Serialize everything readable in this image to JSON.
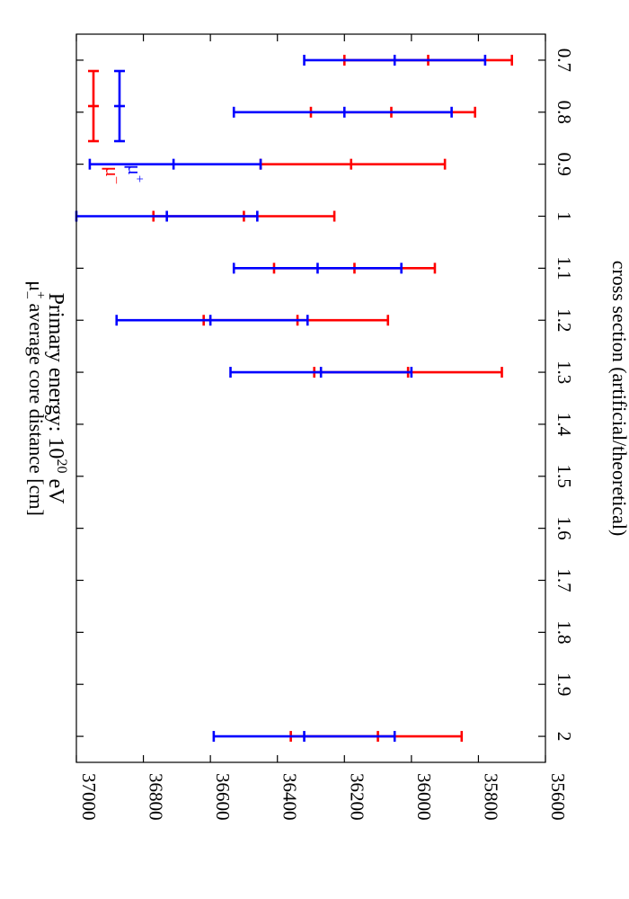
{
  "chart_data": {
    "type": "error-bar",
    "title": "Primary energy: 10^20 eV",
    "title_parts": {
      "prefix": "Primary energy: 10",
      "sup": "20",
      "suffix": " eV"
    },
    "xlabel": "cross section (artificial/theoretical)",
    "ylabel": "μ± average core distance [cm]",
    "ylabel_parts": {
      "base": "μ",
      "sup": "+",
      "sub": "–",
      "rest": " average core distance [cm]"
    },
    "xlim": [
      0.65,
      2.05
    ],
    "ylim": [
      35600,
      37000
    ],
    "x_ticks": [
      0.7,
      0.8,
      0.9,
      1,
      1.1,
      1.2,
      1.3,
      1.4,
      1.5,
      1.6,
      1.7,
      1.8,
      1.9,
      2
    ],
    "x_tick_labels": [
      "0.7",
      "0.8",
      "0.9",
      "1",
      "1.1",
      "1.2",
      "1.3",
      "1.4",
      "1.5",
      "1.6",
      "1.7",
      "1.8",
      "1.9",
      "2"
    ],
    "y_ticks": [
      35600,
      35800,
      36000,
      36200,
      36400,
      36600,
      36800,
      37000
    ],
    "y_tick_labels": [
      "35600",
      "35800",
      "36000",
      "36200",
      "36400",
      "36600",
      "36800",
      "37000"
    ],
    "orientation": "rotated-90-clockwise",
    "legend_position": "top-right",
    "series": [
      {
        "name": "μ–",
        "legend_parts": {
          "base": "μ",
          "sup": "–"
        },
        "color": "#ff0000",
        "points": [
          {
            "x": 0.7,
            "low": 35700,
            "mid": 35950,
            "high": 36200
          },
          {
            "x": 0.8,
            "low": 35810,
            "mid": 36060,
            "high": 36300
          },
          {
            "x": 0.9,
            "low": 35900,
            "mid": 36180,
            "high": 36450
          },
          {
            "x": 1.0,
            "low": 36230,
            "mid": 36500,
            "high": 36770
          },
          {
            "x": 1.1,
            "low": 35930,
            "mid": 36170,
            "high": 36410
          },
          {
            "x": 1.2,
            "low": 36070,
            "mid": 36340,
            "high": 36620
          },
          {
            "x": 1.3,
            "low": 35730,
            "mid": 36010,
            "high": 36290
          },
          {
            "x": 2.0,
            "low": 35850,
            "mid": 36100,
            "high": 36360
          }
        ]
      },
      {
        "name": "μ+",
        "legend_parts": {
          "base": "μ",
          "sup": "+"
        },
        "color": "#0000ff",
        "points": [
          {
            "x": 0.7,
            "low": 35780,
            "mid": 36050,
            "high": 36320
          },
          {
            "x": 0.8,
            "low": 35880,
            "mid": 36200,
            "high": 36530
          },
          {
            "x": 0.9,
            "low": 36450,
            "mid": 36710,
            "high": 36960
          },
          {
            "x": 1.0,
            "low": 36460,
            "mid": 36730,
            "high": 37000
          },
          {
            "x": 1.1,
            "low": 36030,
            "mid": 36280,
            "high": 36530
          },
          {
            "x": 1.2,
            "low": 36310,
            "mid": 36600,
            "high": 36880
          },
          {
            "x": 1.3,
            "low": 36000,
            "mid": 36270,
            "high": 36540
          },
          {
            "x": 2.0,
            "low": 36050,
            "mid": 36320,
            "high": 36590
          }
        ]
      }
    ],
    "grid": false
  }
}
